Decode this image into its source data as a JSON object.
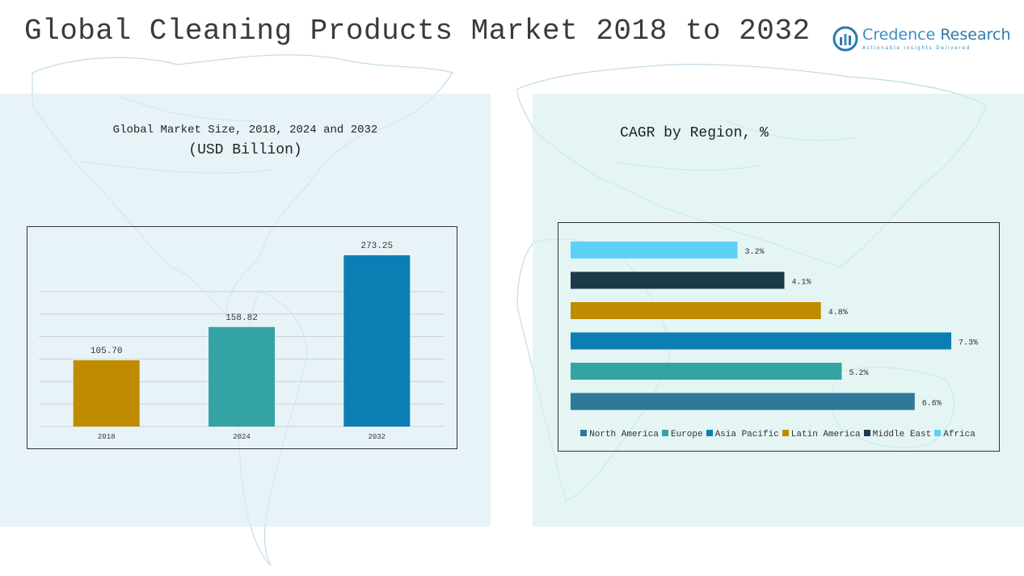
{
  "header": {
    "title": "Global Cleaning Products Market 2018 to 2032",
    "brand_name_part1": "Credence",
    "brand_name_part2": "Research",
    "brand_tagline": "Actionable Insights Delivered"
  },
  "left_panel": {
    "subtitle_line1": "Global Market Size, 2018, 2024 and 2032",
    "subtitle_line2": "(USD Billion)"
  },
  "right_panel": {
    "subtitle": "CAGR by Region, %"
  },
  "chart_data": [
    {
      "type": "bar",
      "title": "Global Market Size, 2018, 2024 and 2032",
      "subtitle": "(USD Billion)",
      "categories": [
        "2018",
        "2024",
        "2032"
      ],
      "values": [
        105.7,
        158.82,
        273.25
      ],
      "value_labels": [
        "105.70",
        "158.82",
        "273.25"
      ],
      "colors": [
        "#bf8c00",
        "#34a3a3",
        "#0b7eb3"
      ],
      "ylim": [
        0,
        300
      ],
      "grid": true,
      "xlabel": "",
      "ylabel": ""
    },
    {
      "type": "bar",
      "orientation": "horizontal",
      "title": "CAGR by Region, %",
      "categories": [
        "North America",
        "Europe",
        "Asia Pacific",
        "Latin America",
        "Middle East",
        "Africa"
      ],
      "values": [
        6.6,
        5.2,
        7.3,
        4.8,
        4.1,
        3.2
      ],
      "value_labels": [
        "6.6%",
        "5.2%",
        "7.3%",
        "4.8%",
        "4.1%",
        "3.2%"
      ],
      "colors": [
        "#2e7899",
        "#34a3a3",
        "#0b7eb3",
        "#bf8c00",
        "#1c3a4a",
        "#5fd0f5"
      ],
      "xlim": [
        0,
        8
      ],
      "grid": false,
      "legend": "bottom"
    }
  ]
}
